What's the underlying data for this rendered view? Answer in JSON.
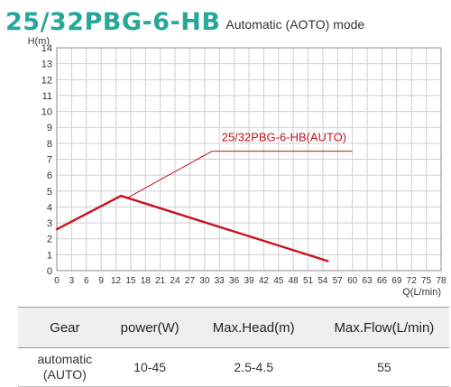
{
  "header": {
    "model": "25/32PBG-6-HB",
    "mode": "Automatic (AOTO) mode"
  },
  "chart_data": {
    "type": "line",
    "ylabel": "H(m)",
    "xlabel": "Q(L/min)",
    "xlim": [
      0,
      78
    ],
    "ylim": [
      0,
      14
    ],
    "xticks": [
      0,
      3,
      6,
      9,
      12,
      15,
      18,
      21,
      24,
      27,
      30,
      33,
      36,
      39,
      42,
      45,
      48,
      51,
      54,
      57,
      60,
      63,
      66,
      69,
      72,
      75,
      78
    ],
    "yticks": [
      0,
      1,
      2,
      3,
      4,
      5,
      6,
      7,
      8,
      9,
      10,
      11,
      12,
      13,
      14
    ],
    "grid": true,
    "series": [
      {
        "name": "25/32PBG-6-HB(AUTO)",
        "color": "#c8121f",
        "x": [
          0,
          13,
          55
        ],
        "y": [
          2.6,
          4.7,
          0.6
        ]
      }
    ],
    "annotation": {
      "text": "25/32PBG-6-HB(AUTO)",
      "color": "#c8121f",
      "leader_from": [
        14.5,
        4.6
      ],
      "leader_elbow": [
        31.5,
        7.5
      ],
      "leader_to": [
        60,
        7.5
      ]
    }
  },
  "table": {
    "headers": [
      "Gear",
      "power(W)",
      "Max.Head(m)",
      "Max.Flow(L/min)"
    ],
    "rows": [
      {
        "gear_line1": "automatic",
        "gear_line2": "(AUTO)",
        "power": "10-45",
        "head": "2.5-4.5",
        "flow": "55"
      }
    ]
  }
}
